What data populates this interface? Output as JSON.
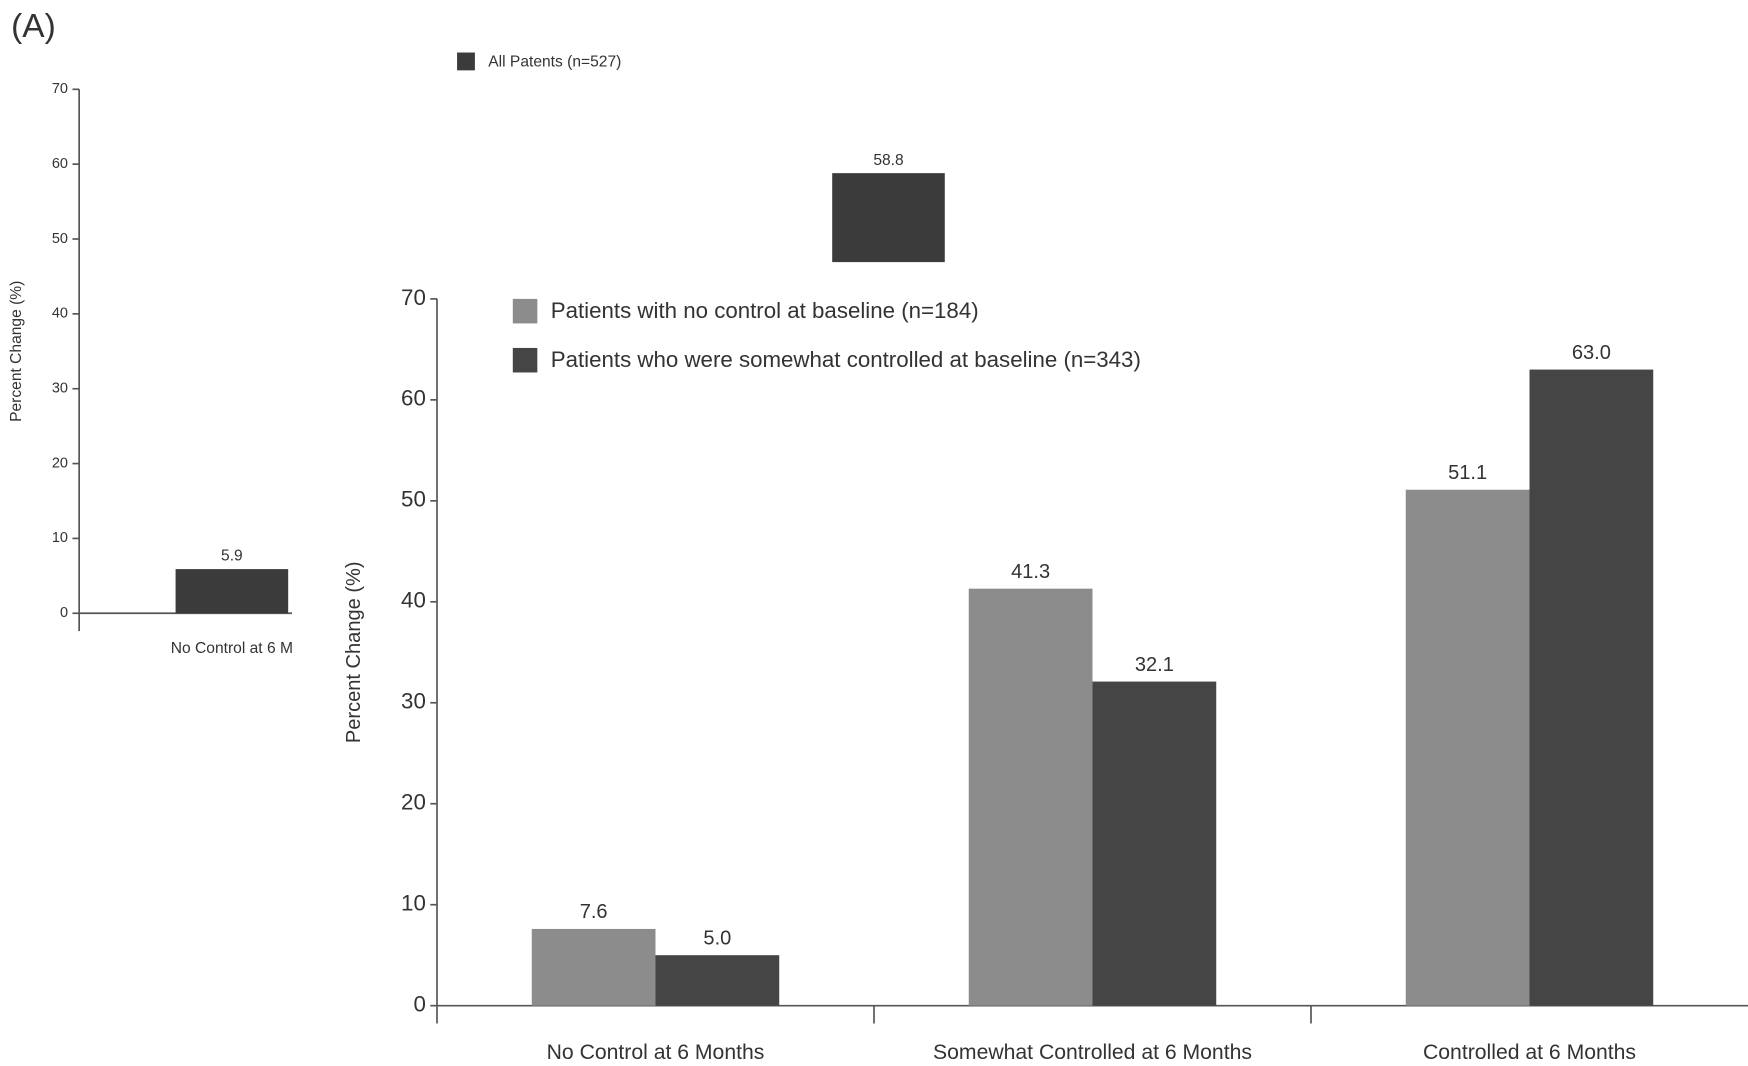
{
  "chart_data": [
    {
      "type": "bar",
      "label": "(A)",
      "y_label": "Percent Change (%)",
      "categories": [
        "No Control at 6 M",
        null
      ],
      "series": [
        {
          "name": "All Patents (n=527)",
          "color": "#3b3b3b",
          "values": [
            5.9,
            58.8
          ]
        }
      ],
      "ylim": [
        0,
        70
      ],
      "yticks": [
        0,
        10,
        20,
        30,
        40,
        50,
        60,
        70
      ]
    },
    {
      "type": "bar",
      "y_label": "Percent Change (%)",
      "categories": [
        "No Control at 6 Months",
        "Somewhat Controlled at 6 Months",
        "Controlled at 6 Months"
      ],
      "series": [
        {
          "name": "Patients with no control at baseline (n=184)",
          "color": "#8c8c8c",
          "values": [
            7.6,
            41.3,
            51.1
          ]
        },
        {
          "name": "Patients who were somewhat controlled at baseline (n=343)",
          "color": "#454545",
          "values": [
            5.0,
            32.1,
            63.0
          ],
          "value_labels": [
            "5.0",
            "32.1",
            "63.0"
          ]
        }
      ],
      "ylim": [
        0,
        70
      ],
      "yticks": [
        0,
        10,
        20,
        30,
        40,
        50,
        60,
        70
      ]
    }
  ]
}
